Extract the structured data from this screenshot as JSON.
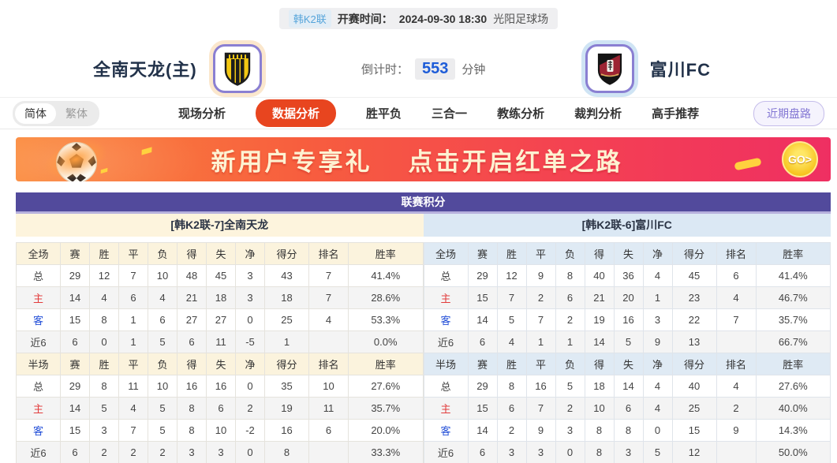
{
  "header": {
    "league_badge": "韩K2联",
    "kickoff_label": "开赛时间：",
    "kickoff_time": "2024-09-30 18:30",
    "venue": "光阳足球场",
    "home_team": "全南天龙(主)",
    "away_team": "富川FC",
    "countdown_label": "倒计时：",
    "countdown_value": "553",
    "countdown_unit": "分钟"
  },
  "nav": {
    "lang_simplified": "简体",
    "lang_traditional": "繁体",
    "tabs": [
      {
        "label": "现场分析",
        "active": false
      },
      {
        "label": "数据分析",
        "active": true
      },
      {
        "label": "胜平负",
        "active": false
      },
      {
        "label": "三合一",
        "active": false
      },
      {
        "label": "教练分析",
        "active": false
      },
      {
        "label": "裁判分析",
        "active": false
      },
      {
        "label": "高手推荐",
        "active": false
      }
    ],
    "recent_odds_button": "近期盘路"
  },
  "banner": {
    "text1": "新用户专享礼",
    "text2": "点击开启红单之路",
    "go_label": "GO>"
  },
  "colors": {
    "accent_red": "#e8451f",
    "title_purple": "#524a9c",
    "home_header_cream": "#fdf4dd",
    "away_header_blue": "#dbe8f4",
    "home_row_label_red": "#e23c3c",
    "away_row_label_blue": "#2450d8",
    "countdown_blue": "#1d5cd8"
  },
  "league_table": {
    "title": "联赛积分",
    "columns_full": [
      "全场",
      "赛",
      "胜",
      "平",
      "负",
      "得",
      "失",
      "净",
      "得分",
      "排名",
      "胜率"
    ],
    "columns_half": [
      "半场",
      "赛",
      "胜",
      "平",
      "负",
      "得",
      "失",
      "净",
      "得分",
      "排名",
      "胜率"
    ],
    "home": {
      "header": "[韩K2联-7]全南天龙",
      "full_rows": [
        [
          "总",
          "29",
          "12",
          "7",
          "10",
          "48",
          "45",
          "3",
          "43",
          "7",
          "41.4%"
        ],
        [
          "主",
          "14",
          "4",
          "6",
          "4",
          "21",
          "18",
          "3",
          "18",
          "7",
          "28.6%"
        ],
        [
          "客",
          "15",
          "8",
          "1",
          "6",
          "27",
          "27",
          "0",
          "25",
          "4",
          "53.3%"
        ],
        [
          "近6",
          "6",
          "0",
          "1",
          "5",
          "6",
          "11",
          "-5",
          "1",
          "",
          "0.0%"
        ]
      ],
      "half_rows": [
        [
          "总",
          "29",
          "8",
          "11",
          "10",
          "16",
          "16",
          "0",
          "35",
          "10",
          "27.6%"
        ],
        [
          "主",
          "14",
          "5",
          "4",
          "5",
          "8",
          "6",
          "2",
          "19",
          "11",
          "35.7%"
        ],
        [
          "客",
          "15",
          "3",
          "7",
          "5",
          "8",
          "10",
          "-2",
          "16",
          "6",
          "20.0%"
        ],
        [
          "近6",
          "6",
          "2",
          "2",
          "2",
          "3",
          "3",
          "0",
          "8",
          "",
          "33.3%"
        ]
      ]
    },
    "away": {
      "header": "[韩K2联-6]富川FC",
      "full_rows": [
        [
          "总",
          "29",
          "12",
          "9",
          "8",
          "40",
          "36",
          "4",
          "45",
          "6",
          "41.4%"
        ],
        [
          "主",
          "15",
          "7",
          "2",
          "6",
          "21",
          "20",
          "1",
          "23",
          "4",
          "46.7%"
        ],
        [
          "客",
          "14",
          "5",
          "7",
          "2",
          "19",
          "16",
          "3",
          "22",
          "7",
          "35.7%"
        ],
        [
          "近6",
          "6",
          "4",
          "1",
          "1",
          "14",
          "5",
          "9",
          "13",
          "",
          "66.7%"
        ]
      ],
      "half_rows": [
        [
          "总",
          "29",
          "8",
          "16",
          "5",
          "18",
          "14",
          "4",
          "40",
          "4",
          "27.6%"
        ],
        [
          "主",
          "15",
          "6",
          "7",
          "2",
          "10",
          "6",
          "4",
          "25",
          "2",
          "40.0%"
        ],
        [
          "客",
          "14",
          "2",
          "9",
          "3",
          "8",
          "8",
          "0",
          "15",
          "9",
          "14.3%"
        ],
        [
          "近6",
          "6",
          "3",
          "3",
          "0",
          "8",
          "3",
          "5",
          "12",
          "",
          "50.0%"
        ]
      ]
    }
  }
}
